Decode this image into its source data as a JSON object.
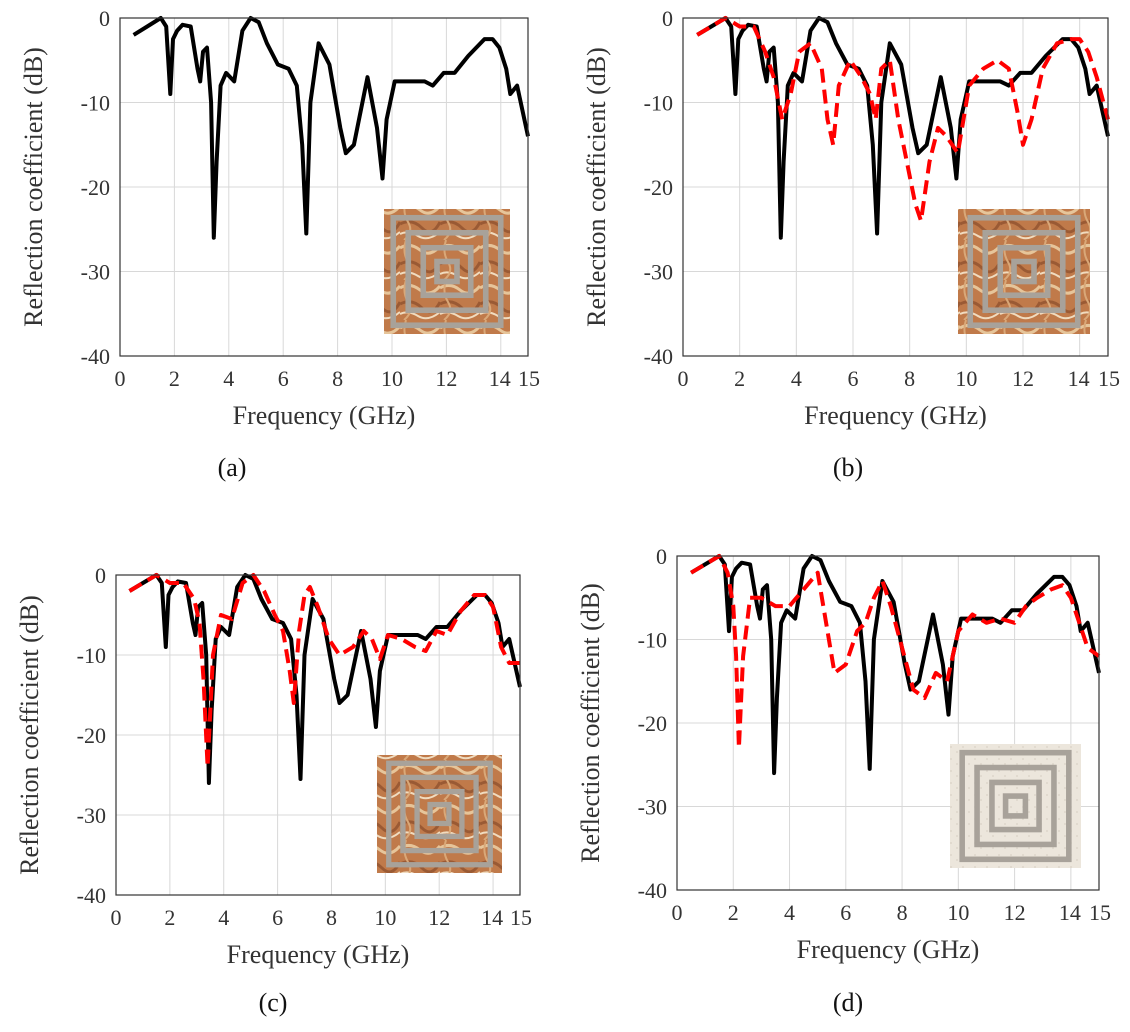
{
  "figure": {
    "captions": [
      "(a)",
      "(b)",
      "(c)",
      "(d)"
    ]
  },
  "colors": {
    "measured": "#000000",
    "comparison": "#ff0000",
    "substrate_warm": "#c07a4a",
    "substrate_light": "#ece6dc",
    "pattern_gray": "#a8a29a"
  },
  "chart_data": [
    {
      "type": "line",
      "caption": "(a)",
      "xlabel": "Frequency (GHz)",
      "ylabel": "Reflection coefficient (dB)",
      "xlim": [
        0,
        15
      ],
      "ylim": [
        -40,
        0
      ],
      "xticks": [
        0,
        2,
        4,
        6,
        8,
        10,
        12,
        14,
        15
      ],
      "xtick_labels": [
        "0",
        "2",
        "4",
        "6",
        "8",
        "10",
        "12",
        "14",
        "15"
      ],
      "yticks": [
        0,
        -10,
        -20,
        -30,
        -40
      ],
      "ytick_labels": [
        "0",
        "-10",
        "-20",
        "-30",
        "-40"
      ],
      "grid": true,
      "inset": {
        "position": "bottom-right",
        "content": "photo of fabricated square-loop pattern",
        "substrate": "warm"
      },
      "series": [
        {
          "color": "#000000",
          "style": "solid",
          "x": [
            0.5,
            1.0,
            1.5,
            1.7,
            1.85,
            1.95,
            2.1,
            2.3,
            2.6,
            2.85,
            2.95,
            3.05,
            3.2,
            3.35,
            3.45,
            3.55,
            3.7,
            3.9,
            4.2,
            4.5,
            4.8,
            5.1,
            5.4,
            5.8,
            6.2,
            6.5,
            6.7,
            6.85,
            7.0,
            7.3,
            7.7,
            8.1,
            8.3,
            8.6,
            9.1,
            9.45,
            9.65,
            9.8,
            10.1,
            10.6,
            11.2,
            11.5,
            11.9,
            12.3,
            12.8,
            13.4,
            13.7,
            13.95,
            14.2,
            14.35,
            14.6,
            15.0
          ],
          "y": [
            -2,
            -1,
            0,
            -1,
            -9,
            -2.5,
            -1.5,
            -0.8,
            -1,
            -6,
            -7.5,
            -4,
            -3.5,
            -10,
            -26,
            -17,
            -8,
            -6.5,
            -7.5,
            -1.5,
            0,
            -0.5,
            -3,
            -5.5,
            -6,
            -8,
            -15,
            -25.5,
            -10,
            -3,
            -5.5,
            -13,
            -16,
            -15,
            -7,
            -13,
            -19,
            -12,
            -7.5,
            -7.5,
            -7.5,
            -8,
            -6.5,
            -6.5,
            -4.5,
            -2.5,
            -2.5,
            -3.5,
            -6,
            -9,
            -8,
            -14
          ]
        }
      ]
    },
    {
      "type": "line",
      "caption": "(b)",
      "xlabel": "Frequency (GHz)",
      "ylabel": "Reflection coefficient (dB)",
      "xlim": [
        0,
        15
      ],
      "ylim": [
        -40,
        0
      ],
      "xticks": [
        0,
        2,
        4,
        6,
        8,
        10,
        12,
        14,
        15
      ],
      "xtick_labels": [
        "0",
        "2",
        "4",
        "6",
        "8",
        "10",
        "12",
        "14",
        "15"
      ],
      "yticks": [
        0,
        -10,
        -20,
        -30,
        -40
      ],
      "ytick_labels": [
        "0",
        "-10",
        "-20",
        "-30",
        "-40"
      ],
      "grid": true,
      "inset": {
        "position": "bottom-right",
        "content": "photo of fabricated square-loop pattern",
        "substrate": "warm"
      },
      "series": [
        {
          "color": "#000000",
          "style": "solid",
          "x": [
            0.5,
            1.0,
            1.5,
            1.7,
            1.85,
            1.95,
            2.1,
            2.3,
            2.6,
            2.85,
            2.95,
            3.05,
            3.2,
            3.35,
            3.45,
            3.55,
            3.7,
            3.9,
            4.2,
            4.5,
            4.8,
            5.1,
            5.4,
            5.8,
            6.2,
            6.5,
            6.7,
            6.85,
            7.0,
            7.3,
            7.7,
            8.1,
            8.3,
            8.6,
            9.1,
            9.45,
            9.65,
            9.8,
            10.1,
            10.6,
            11.2,
            11.5,
            11.9,
            12.3,
            12.8,
            13.4,
            13.7,
            13.95,
            14.2,
            14.35,
            14.6,
            15.0
          ],
          "y": [
            -2,
            -1,
            0,
            -1,
            -9,
            -2.5,
            -1.5,
            -0.8,
            -1,
            -6,
            -7.5,
            -4,
            -3.5,
            -10,
            -26,
            -17,
            -8,
            -6.5,
            -7.5,
            -1.5,
            0,
            -0.5,
            -3,
            -5.5,
            -6,
            -8,
            -15,
            -25.5,
            -10,
            -3,
            -5.5,
            -13,
            -16,
            -15,
            -7,
            -13,
            -19,
            -12,
            -7.5,
            -7.5,
            -7.5,
            -8,
            -6.5,
            -6.5,
            -4.5,
            -2.5,
            -2.5,
            -3.5,
            -6,
            -9,
            -8,
            -14
          ]
        },
        {
          "color": "#ff0000",
          "style": "dashed",
          "x": [
            0.5,
            1.0,
            1.5,
            2.0,
            2.5,
            2.9,
            3.2,
            3.5,
            3.8,
            4.1,
            4.5,
            4.9,
            5.1,
            5.3,
            5.5,
            5.9,
            6.3,
            6.6,
            6.8,
            7.0,
            7.3,
            7.6,
            7.9,
            8.2,
            8.4,
            8.7,
            9.0,
            9.3,
            9.7,
            10.1,
            10.6,
            11.1,
            11.5,
            11.8,
            12.0,
            12.3,
            12.7,
            13.2,
            13.7,
            14.0,
            14.3,
            14.6,
            15.0
          ],
          "y": [
            -2,
            -1,
            0,
            -1,
            -1,
            -4,
            -7,
            -12,
            -9,
            -4,
            -3,
            -6,
            -12,
            -15,
            -8,
            -5,
            -7,
            -9,
            -12,
            -6,
            -5,
            -12,
            -17,
            -22,
            -24,
            -17,
            -13,
            -14,
            -16,
            -8,
            -6,
            -5,
            -6,
            -11,
            -15,
            -12,
            -6,
            -3,
            -2.5,
            -2.5,
            -4,
            -7,
            -12
          ]
        }
      ]
    },
    {
      "type": "line",
      "caption": "(c)",
      "xlabel": "Frequency (GHz)",
      "ylabel": "Reflection coefficient (dB)",
      "xlim": [
        0,
        15
      ],
      "ylim": [
        -40,
        0
      ],
      "xticks": [
        0,
        2,
        4,
        6,
        8,
        10,
        12,
        14,
        15
      ],
      "xtick_labels": [
        "0",
        "2",
        "4",
        "6",
        "8",
        "10",
        "12",
        "14",
        "15"
      ],
      "yticks": [
        0,
        -10,
        -20,
        -30,
        -40
      ],
      "ytick_labels": [
        "0",
        "-10",
        "-20",
        "-30",
        "-40"
      ],
      "grid": true,
      "inset": {
        "position": "bottom-right",
        "content": "photo of fabricated square-loop pattern",
        "substrate": "warm"
      },
      "series": [
        {
          "color": "#000000",
          "style": "solid",
          "x": [
            0.5,
            1.0,
            1.5,
            1.7,
            1.85,
            1.95,
            2.1,
            2.3,
            2.6,
            2.85,
            2.95,
            3.05,
            3.2,
            3.35,
            3.45,
            3.55,
            3.7,
            3.9,
            4.2,
            4.5,
            4.8,
            5.1,
            5.4,
            5.8,
            6.2,
            6.5,
            6.7,
            6.85,
            7.0,
            7.3,
            7.7,
            8.1,
            8.3,
            8.6,
            9.1,
            9.45,
            9.65,
            9.8,
            10.1,
            10.6,
            11.2,
            11.5,
            11.9,
            12.3,
            12.8,
            13.4,
            13.7,
            13.95,
            14.2,
            14.35,
            14.6,
            15.0
          ],
          "y": [
            -2,
            -1,
            0,
            -1,
            -9,
            -2.5,
            -1.5,
            -0.8,
            -1,
            -6,
            -7.5,
            -4,
            -3.5,
            -10,
            -26,
            -17,
            -8,
            -6.5,
            -7.5,
            -1.5,
            0,
            -0.5,
            -3,
            -5.5,
            -6,
            -8,
            -15,
            -25.5,
            -10,
            -3,
            -5.5,
            -13,
            -16,
            -15,
            -7,
            -13,
            -19,
            -12,
            -7.5,
            -7.5,
            -7.5,
            -8,
            -6.5,
            -6.5,
            -4.5,
            -2.5,
            -2.5,
            -3.5,
            -6,
            -9,
            -8,
            -14
          ]
        },
        {
          "color": "#ff0000",
          "style": "dashed",
          "x": [
            0.5,
            1.0,
            1.5,
            2.0,
            2.5,
            2.9,
            3.1,
            3.25,
            3.4,
            3.6,
            3.9,
            4.3,
            4.7,
            5.1,
            5.5,
            5.9,
            6.2,
            6.45,
            6.6,
            6.8,
            7.0,
            7.2,
            7.5,
            7.9,
            8.3,
            8.8,
            9.2,
            9.5,
            9.8,
            10.1,
            10.6,
            11.1,
            11.5,
            11.9,
            12.3,
            12.8,
            13.3,
            13.7,
            14.0,
            14.3,
            14.6,
            15.0
          ],
          "y": [
            -2,
            -1,
            0,
            -1,
            -1,
            -3,
            -6,
            -13,
            -24,
            -10,
            -5,
            -5.5,
            -1,
            0,
            -2,
            -5,
            -7,
            -12,
            -16,
            -7,
            -2.5,
            -1.5,
            -4,
            -8,
            -10,
            -9,
            -7,
            -8,
            -10.5,
            -7.5,
            -8,
            -9,
            -9.5,
            -7,
            -7.5,
            -4.5,
            -2.5,
            -2.5,
            -4,
            -9,
            -11,
            -11
          ]
        }
      ]
    },
    {
      "type": "line",
      "caption": "(d)",
      "xlabel": "Frequency (GHz)",
      "ylabel": "Reflection coefficient (dB)",
      "xlim": [
        0,
        15
      ],
      "ylim": [
        -40,
        0
      ],
      "xticks": [
        0,
        2,
        4,
        6,
        8,
        10,
        12,
        14,
        15
      ],
      "xtick_labels": [
        "0",
        "2",
        "4",
        "6",
        "8",
        "10",
        "12",
        "14",
        "15"
      ],
      "yticks": [
        0,
        -10,
        -20,
        -30,
        -40
      ],
      "ytick_labels": [
        "0",
        "-10",
        "-20",
        "-30",
        "-40"
      ],
      "grid": true,
      "inset": {
        "position": "bottom-right",
        "content": "photo of fabricated square-loop pattern",
        "substrate": "light"
      },
      "series": [
        {
          "color": "#000000",
          "style": "solid",
          "x": [
            0.5,
            1.0,
            1.5,
            1.7,
            1.85,
            1.95,
            2.1,
            2.3,
            2.6,
            2.85,
            2.95,
            3.05,
            3.2,
            3.35,
            3.45,
            3.55,
            3.7,
            3.9,
            4.2,
            4.5,
            4.8,
            5.1,
            5.4,
            5.8,
            6.2,
            6.5,
            6.7,
            6.85,
            7.0,
            7.3,
            7.7,
            8.1,
            8.3,
            8.6,
            9.1,
            9.45,
            9.65,
            9.8,
            10.1,
            10.6,
            11.2,
            11.5,
            11.9,
            12.3,
            12.8,
            13.4,
            13.7,
            13.95,
            14.2,
            14.35,
            14.6,
            15.0
          ],
          "y": [
            -2,
            -1,
            0,
            -1,
            -9,
            -2.5,
            -1.5,
            -0.8,
            -1,
            -6,
            -7.5,
            -4,
            -3.5,
            -10,
            -26,
            -17,
            -8,
            -6.5,
            -7.5,
            -1.5,
            0,
            -0.5,
            -3,
            -5.5,
            -6,
            -8,
            -15,
            -25.5,
            -10,
            -3,
            -5.5,
            -13,
            -16,
            -15,
            -7,
            -13,
            -19,
            -12,
            -7.5,
            -7.5,
            -7.5,
            -8,
            -6.5,
            -6.5,
            -4.5,
            -2.5,
            -2.5,
            -3.5,
            -6,
            -9,
            -8,
            -14
          ]
        },
        {
          "color": "#ff0000",
          "style": "dashed",
          "x": [
            0.5,
            1.0,
            1.5,
            1.8,
            2.0,
            2.1,
            2.2,
            2.35,
            2.6,
            3.0,
            3.5,
            4.0,
            4.5,
            5.0,
            5.3,
            5.6,
            6.0,
            6.4,
            6.7,
            7.0,
            7.3,
            7.6,
            8.0,
            8.4,
            8.8,
            9.2,
            9.6,
            10.0,
            10.5,
            11.0,
            11.5,
            12.0,
            12.4,
            12.8,
            13.3,
            13.7,
            14.0,
            14.3,
            14.6,
            15.0
          ],
          "y": [
            -2,
            -1,
            0,
            -2,
            -6,
            -12,
            -23,
            -12,
            -5,
            -5,
            -6,
            -6,
            -4,
            -2,
            -8,
            -14,
            -13,
            -9,
            -8,
            -5,
            -3,
            -6,
            -11,
            -16,
            -17,
            -14,
            -15,
            -9,
            -7,
            -8,
            -7.5,
            -8,
            -6,
            -5,
            -4,
            -3.5,
            -5,
            -8,
            -11,
            -12
          ]
        }
      ]
    }
  ]
}
